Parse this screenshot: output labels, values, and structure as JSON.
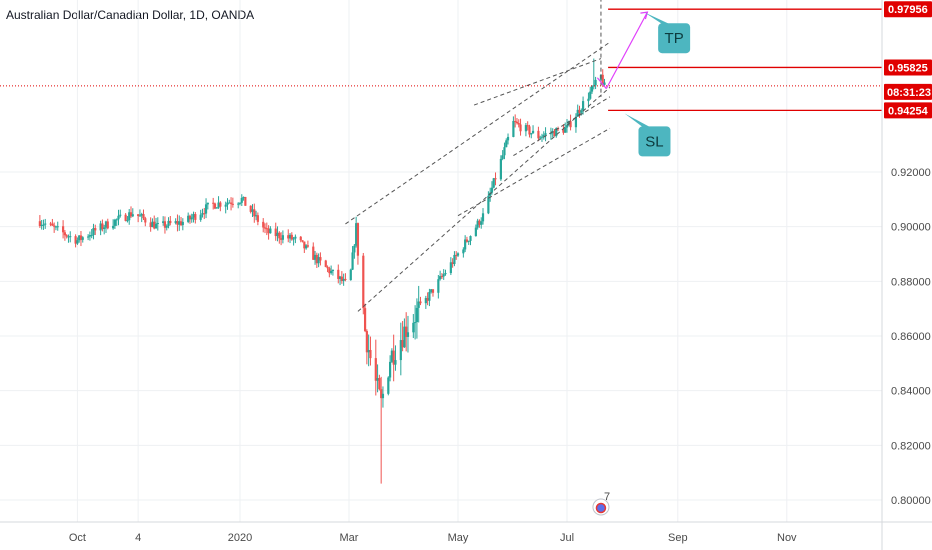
{
  "header": {
    "title": "Australian Dollar/Canadian Dollar, 1D, OANDA"
  },
  "colors": {
    "up": "#26a69a",
    "down": "#ef5350",
    "level_line": "#e00000",
    "arrow": "#e040fb",
    "callout": "#4db6c0",
    "channel": "#555555",
    "grid": "#eef0f3"
  },
  "icons": {
    "event_marker": "flag-icon"
  },
  "chart_data": {
    "type": "candlestick",
    "symbol": "Australian Dollar/Canadian Dollar",
    "interval": "1D",
    "broker": "OANDA",
    "ylim": [
      0.795,
      0.99
    ],
    "y_ticks": [
      "0.80000",
      "0.82000",
      "0.84000",
      "0.86000",
      "0.88000",
      "0.90000",
      "0.92000"
    ],
    "x_ticks": [
      "Oct",
      "4",
      "2020",
      "Mar",
      "May",
      "Jul",
      "Sep",
      "Nov"
    ],
    "price_series": {
      "dates": [
        "2019-09-10",
        "2019-10-01",
        "2019-10-15",
        "2019-11-01",
        "2019-11-15",
        "2019-12-01",
        "2019-12-15",
        "2020-01-01",
        "2020-01-15",
        "2020-02-01",
        "2020-02-15",
        "2020-03-01",
        "2020-03-05",
        "2020-03-10",
        "2020-03-15",
        "2020-03-19",
        "2020-03-24",
        "2020-04-01",
        "2020-04-15",
        "2020-05-01",
        "2020-05-15",
        "2020-06-01",
        "2020-06-15",
        "2020-07-01",
        "2020-07-10",
        "2020-07-15",
        "2020-07-20",
        "2020-07-22"
      ],
      "close": [
        0.902,
        0.895,
        0.9,
        0.905,
        0.9,
        0.902,
        0.908,
        0.91,
        0.898,
        0.895,
        0.886,
        0.878,
        0.9,
        0.862,
        0.845,
        0.835,
        0.852,
        0.862,
        0.875,
        0.89,
        0.904,
        0.938,
        0.933,
        0.936,
        0.945,
        0.95,
        0.955,
        0.951
      ]
    },
    "levels": [
      {
        "label": "0.97956",
        "value": 0.97956,
        "role": "TP"
      },
      {
        "label": "0.95825",
        "value": 0.95825,
        "role": "entry"
      },
      {
        "label": "0.94254",
        "value": 0.94254,
        "role": "SL"
      }
    ],
    "current_price_label": "08:31:23",
    "current_price_value": 0.9515,
    "callouts": [
      {
        "text": "TP",
        "level": "0.97956"
      },
      {
        "text": "SL",
        "level": "0.94254"
      }
    ],
    "event_marker_count": "7"
  }
}
